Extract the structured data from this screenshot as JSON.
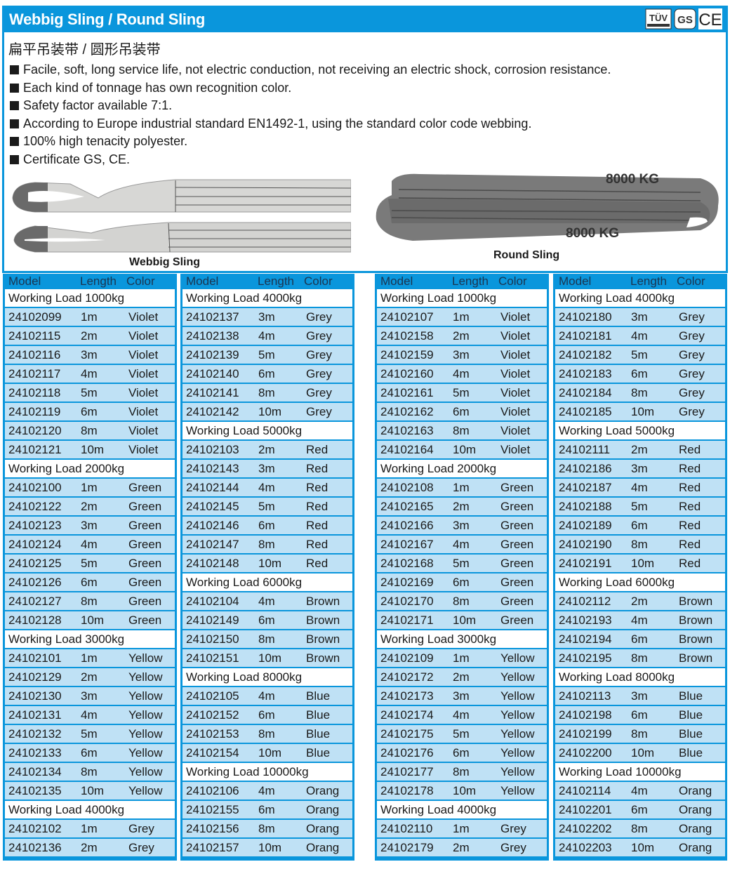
{
  "header": {
    "title": "Webbig Sling / Round Sling",
    "certs": [
      "TÜV",
      "GS",
      "CE"
    ]
  },
  "subtitle": "扁平吊装带 / 圆形吊装带",
  "bullets": [
    "Facile, soft, long service life, not electric conduction, not receiving an electric shock, corrosion resistance.",
    "Each kind of tonnage has own recognition color.",
    "Safety factor available 7:1.",
    "According to Europe industrial standard EN1492-1, using the standard color code webbing.",
    "100% high tenacity polyester.",
    "Certificate GS, CE."
  ],
  "images": {
    "webbing_caption": "Webbig Sling",
    "round_caption": "Round Sling",
    "round_label": "8000 KG"
  },
  "colors": {
    "accent": "#0a96dc",
    "row": "#bfe1f5"
  },
  "table_headers": {
    "model": "Model",
    "length": "Length",
    "color": "Color"
  },
  "tables": [
    {
      "groups": [
        {
          "heading": "Working Load 1000kg",
          "rows": [
            [
              "24102099",
              "1m",
              "Violet"
            ],
            [
              "24102115",
              "2m",
              "Violet"
            ],
            [
              "24102116",
              "3m",
              "Violet"
            ],
            [
              "24102117",
              "4m",
              "Violet"
            ],
            [
              "24102118",
              "5m",
              "Violet"
            ],
            [
              "24102119",
              "6m",
              "Violet"
            ],
            [
              "24102120",
              "8m",
              "Violet"
            ],
            [
              "24102121",
              "10m",
              "Violet"
            ]
          ]
        },
        {
          "heading": "Working Load 2000kg",
          "rows": [
            [
              "24102100",
              "1m",
              "Green"
            ],
            [
              "24102122",
              "2m",
              "Green"
            ],
            [
              "24102123",
              "3m",
              "Green"
            ],
            [
              "24102124",
              "4m",
              "Green"
            ],
            [
              "24102125",
              "5m",
              "Green"
            ],
            [
              "24102126",
              "6m",
              "Green"
            ],
            [
              "24102127",
              "8m",
              "Green"
            ],
            [
              "24102128",
              "10m",
              "Green"
            ]
          ]
        },
        {
          "heading": "Working Load 3000kg",
          "rows": [
            [
              "24102101",
              "1m",
              "Yellow"
            ],
            [
              "24102129",
              "2m",
              "Yellow"
            ],
            [
              "24102130",
              "3m",
              "Yellow"
            ],
            [
              "24102131",
              "4m",
              "Yellow"
            ],
            [
              "24102132",
              "5m",
              "Yellow"
            ],
            [
              "24102133",
              "6m",
              "Yellow"
            ],
            [
              "24102134",
              "8m",
              "Yellow"
            ],
            [
              "24102135",
              "10m",
              "Yellow"
            ]
          ]
        },
        {
          "heading": "Working Load 4000kg",
          "rows": [
            [
              "24102102",
              "1m",
              "Grey"
            ],
            [
              "24102136",
              "2m",
              "Grey"
            ]
          ]
        }
      ]
    },
    {
      "groups": [
        {
          "heading": "Working Load 4000kg",
          "rows": [
            [
              "24102137",
              "3m",
              "Grey"
            ],
            [
              "24102138",
              "4m",
              "Grey"
            ],
            [
              "24102139",
              "5m",
              "Grey"
            ],
            [
              "24102140",
              "6m",
              "Grey"
            ],
            [
              "24102141",
              "8m",
              "Grey"
            ],
            [
              "24102142",
              "10m",
              "Grey"
            ]
          ]
        },
        {
          "heading": "Working Load 5000kg",
          "rows": [
            [
              "24102103",
              "2m",
              "Red"
            ],
            [
              "24102143",
              "3m",
              "Red"
            ],
            [
              "24102144",
              "4m",
              "Red"
            ],
            [
              "24102145",
              "5m",
              "Red"
            ],
            [
              "24102146",
              "6m",
              "Red"
            ],
            [
              "24102147",
              "8m",
              "Red"
            ],
            [
              "24102148",
              "10m",
              "Red"
            ]
          ]
        },
        {
          "heading": "Working Load 6000kg",
          "rows": [
            [
              "24102104",
              "4m",
              "Brown"
            ],
            [
              "24102149",
              "6m",
              "Brown"
            ],
            [
              "24102150",
              "8m",
              "Brown"
            ],
            [
              "24102151",
              "10m",
              "Brown"
            ]
          ]
        },
        {
          "heading": "Working Load 8000kg",
          "rows": [
            [
              "24102105",
              "4m",
              "Blue"
            ],
            [
              "24102152",
              "6m",
              "Blue"
            ],
            [
              "24102153",
              "8m",
              "Blue"
            ],
            [
              "24102154",
              "10m",
              "Blue"
            ]
          ]
        },
        {
          "heading": "Working Load 10000kg",
          "rows": [
            [
              "24102106",
              "4m",
              "Orang"
            ],
            [
              "24102155",
              "6m",
              "Orang"
            ],
            [
              "24102156",
              "8m",
              "Orang"
            ],
            [
              "24102157",
              "10m",
              "Orang"
            ]
          ]
        }
      ]
    },
    {
      "groups": [
        {
          "heading": "Working Load 1000kg",
          "rows": [
            [
              "24102107",
              "1m",
              "Violet"
            ],
            [
              "24102158",
              "2m",
              "Violet"
            ],
            [
              "24102159",
              "3m",
              "Violet"
            ],
            [
              "24102160",
              "4m",
              "Violet"
            ],
            [
              "24102161",
              "5m",
              "Violet"
            ],
            [
              "24102162",
              "6m",
              "Violet"
            ],
            [
              "24102163",
              "8m",
              "Violet"
            ],
            [
              "24102164",
              "10m",
              "Violet"
            ]
          ]
        },
        {
          "heading": "Working Load 2000kg",
          "rows": [
            [
              "24102108",
              "1m",
              "Green"
            ],
            [
              "24102165",
              "2m",
              "Green"
            ],
            [
              "24102166",
              "3m",
              "Green"
            ],
            [
              "24102167",
              "4m",
              "Green"
            ],
            [
              "24102168",
              "5m",
              "Green"
            ],
            [
              "24102169",
              "6m",
              "Green"
            ],
            [
              "24102170",
              "8m",
              "Green"
            ],
            [
              "24102171",
              "10m",
              "Green"
            ]
          ]
        },
        {
          "heading": "Working Load 3000kg",
          "rows": [
            [
              "24102109",
              "1m",
              "Yellow"
            ],
            [
              "24102172",
              "2m",
              "Yellow"
            ],
            [
              "24102173",
              "3m",
              "Yellow"
            ],
            [
              "24102174",
              "4m",
              "Yellow"
            ],
            [
              "24102175",
              "5m",
              "Yellow"
            ],
            [
              "24102176",
              "6m",
              "Yellow"
            ],
            [
              "24102177",
              "8m",
              "Yellow"
            ],
            [
              "24102178",
              "10m",
              "Yellow"
            ]
          ]
        },
        {
          "heading": "Working Load 4000kg",
          "rows": [
            [
              "24102110",
              "1m",
              "Grey"
            ],
            [
              "24102179",
              "2m",
              "Grey"
            ]
          ]
        }
      ]
    },
    {
      "groups": [
        {
          "heading": "Working Load 4000kg",
          "rows": [
            [
              "24102180",
              "3m",
              "Grey"
            ],
            [
              "24102181",
              "4m",
              "Grey"
            ],
            [
              "24102182",
              "5m",
              "Grey"
            ],
            [
              "24102183",
              "6m",
              "Grey"
            ],
            [
              "24102184",
              "8m",
              "Grey"
            ],
            [
              "24102185",
              "10m",
              "Grey"
            ]
          ]
        },
        {
          "heading": "Working Load 5000kg",
          "rows": [
            [
              "24102111",
              "2m",
              "Red"
            ],
            [
              "24102186",
              "3m",
              "Red"
            ],
            [
              "24102187",
              "4m",
              "Red"
            ],
            [
              "24102188",
              "5m",
              "Red"
            ],
            [
              "24102189",
              "6m",
              "Red"
            ],
            [
              "24102190",
              "8m",
              "Red"
            ],
            [
              "24102191",
              "10m",
              "Red"
            ]
          ]
        },
        {
          "heading": "Working Load 6000kg",
          "rows": [
            [
              "24102112",
              "2m",
              "Brown"
            ],
            [
              "24102193",
              "4m",
              "Brown"
            ],
            [
              "24102194",
              "6m",
              "Brown"
            ],
            [
              "24102195",
              "8m",
              "Brown"
            ]
          ]
        },
        {
          "heading": "Working Load 8000kg",
          "rows": [
            [
              "24102113",
              "3m",
              "Blue"
            ],
            [
              "24102198",
              "6m",
              "Blue"
            ],
            [
              "24102199",
              "8m",
              "Blue"
            ],
            [
              "24102200",
              "10m",
              "Blue"
            ]
          ]
        },
        {
          "heading": "Working Load 10000kg",
          "rows": [
            [
              "24102114",
              "4m",
              "Orang"
            ],
            [
              "24102201",
              "6m",
              "Orang"
            ],
            [
              "24102202",
              "8m",
              "Orang"
            ],
            [
              "24102203",
              "10m",
              "Orang"
            ]
          ]
        }
      ]
    }
  ]
}
